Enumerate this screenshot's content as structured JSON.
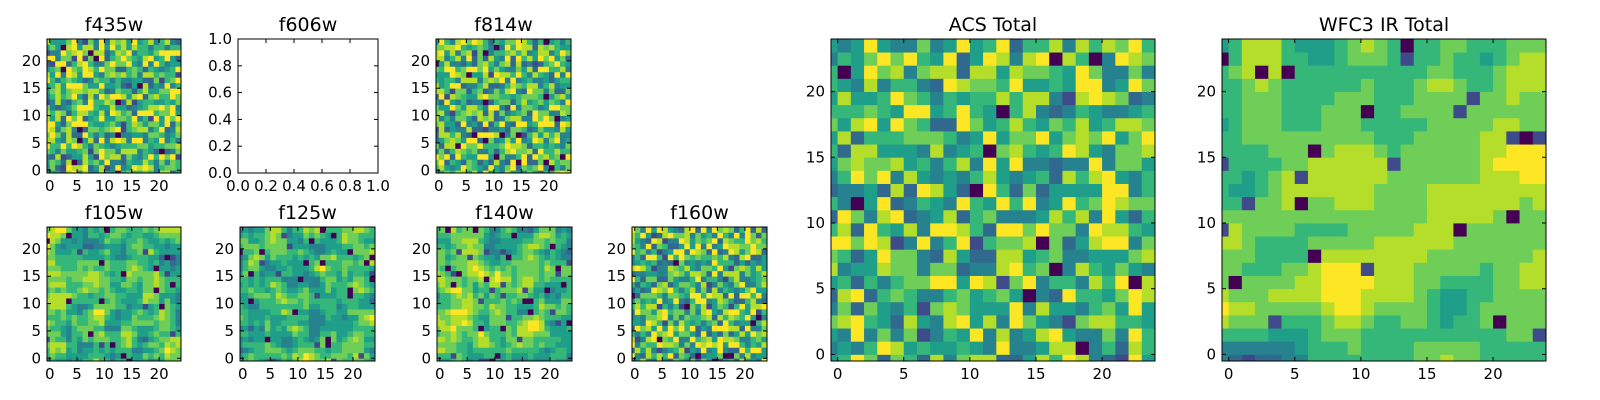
{
  "chart_data": [
    {
      "type": "heatmap",
      "title": "f435w",
      "grid": "25x25",
      "xticks": [
        "0",
        "5",
        "10",
        "15",
        "20"
      ],
      "yticks": [
        "0",
        "5",
        "10",
        "15",
        "20"
      ],
      "colormap": "viridis",
      "seed": 11,
      "smooth": 0,
      "empty": false
    },
    {
      "type": "heatmap",
      "title": "f606w",
      "grid": "empty",
      "xticks": [
        "0.0",
        "0.2",
        "0.4",
        "0.6",
        "0.8",
        "1.0"
      ],
      "yticks": [
        "0.0",
        "0.2",
        "0.4",
        "0.6",
        "0.8",
        "1.0"
      ],
      "empty": true
    },
    {
      "type": "heatmap",
      "title": "f814w",
      "grid": "25x25",
      "xticks": [
        "0",
        "5",
        "10",
        "15",
        "20"
      ],
      "yticks": [
        "0",
        "5",
        "10",
        "15",
        "20"
      ],
      "colormap": "viridis",
      "seed": 23,
      "smooth": 0,
      "empty": false
    },
    {
      "type": "heatmap",
      "title": "f105w",
      "grid": "25x25",
      "xticks": [
        "0",
        "5",
        "10",
        "15",
        "20"
      ],
      "yticks": [
        "0",
        "5",
        "10",
        "15",
        "20"
      ],
      "colormap": "viridis",
      "seed": 37,
      "smooth": 1,
      "empty": false
    },
    {
      "type": "heatmap",
      "title": "f125w",
      "grid": "25x25",
      "xticks": [
        "0",
        "5",
        "10",
        "15",
        "20"
      ],
      "yticks": [
        "0",
        "5",
        "10",
        "15",
        "20"
      ],
      "colormap": "viridis",
      "seed": 41,
      "smooth": 1,
      "empty": false
    },
    {
      "type": "heatmap",
      "title": "f140w",
      "grid": "25x25",
      "xticks": [
        "0",
        "5",
        "10",
        "15",
        "20"
      ],
      "yticks": [
        "0",
        "5",
        "10",
        "15",
        "20"
      ],
      "colormap": "viridis",
      "seed": 53,
      "smooth": 1,
      "empty": false
    },
    {
      "type": "heatmap",
      "title": "f160w",
      "grid": "25x25",
      "xticks": [
        "0",
        "5",
        "10",
        "15",
        "20"
      ],
      "yticks": [
        "0",
        "5",
        "10",
        "15",
        "20"
      ],
      "colormap": "viridis",
      "seed": 67,
      "smooth": 0,
      "empty": false
    },
    {
      "type": "heatmap",
      "title": "ACS Total",
      "grid": "25x25",
      "xticks": [
        "0",
        "5",
        "10",
        "15",
        "20"
      ],
      "yticks": [
        "0",
        "5",
        "10",
        "15",
        "20"
      ],
      "colormap": "viridis",
      "seed": 79,
      "smooth": 0,
      "empty": false
    },
    {
      "type": "heatmap",
      "title": "WFC3 IR Total",
      "grid": "25x25",
      "xticks": [
        "0",
        "5",
        "10",
        "15",
        "20"
      ],
      "yticks": [
        "0",
        "5",
        "10",
        "15",
        "20"
      ],
      "colormap": "viridis",
      "seed": 97,
      "smooth": 2,
      "empty": false
    }
  ]
}
